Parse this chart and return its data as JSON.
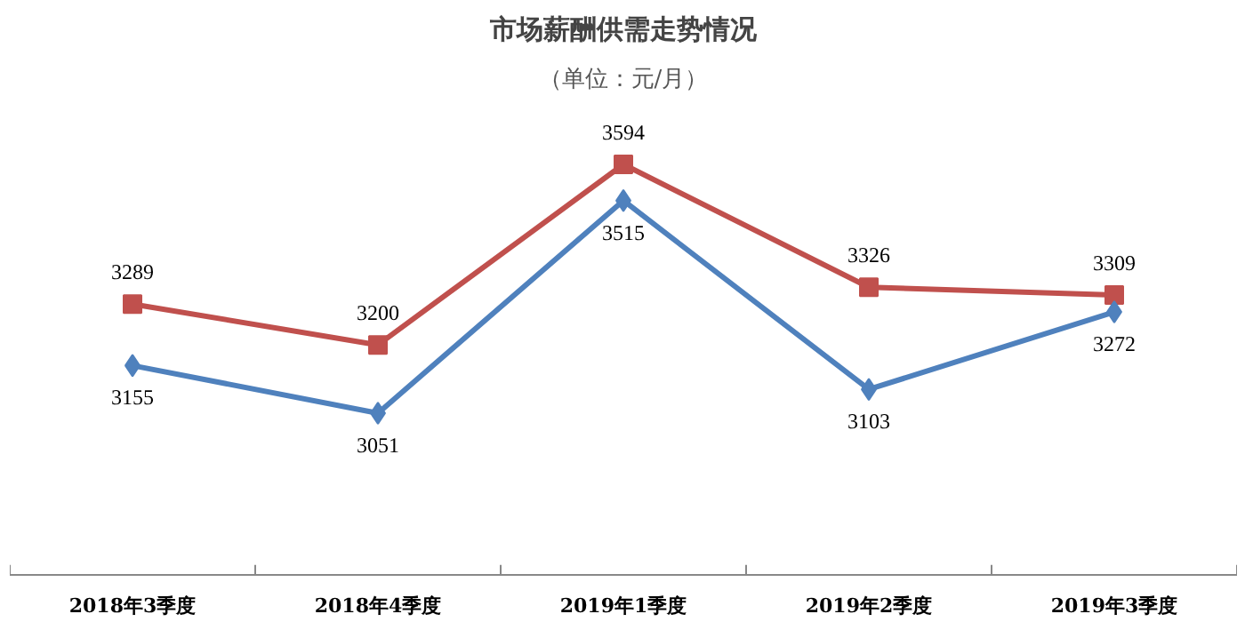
{
  "chart_data": {
    "type": "line",
    "title": "市场薪酬供需走势情况",
    "subtitle": "（单位：元/月）",
    "categories": [
      "2018年3季度",
      "2018年4季度",
      "2019年1季度",
      "2019年2季度",
      "2019年3季度"
    ],
    "series": [
      {
        "color": "#c0504d",
        "marker": "square",
        "values": [
          3289,
          3200,
          3594,
          3326,
          3309
        ]
      },
      {
        "color": "#4f81bd",
        "marker": "diamond",
        "values": [
          3155,
          3051,
          3515,
          3103,
          3272
        ]
      }
    ],
    "data_labels": true,
    "grid": false,
    "tick_labels": "x"
  }
}
